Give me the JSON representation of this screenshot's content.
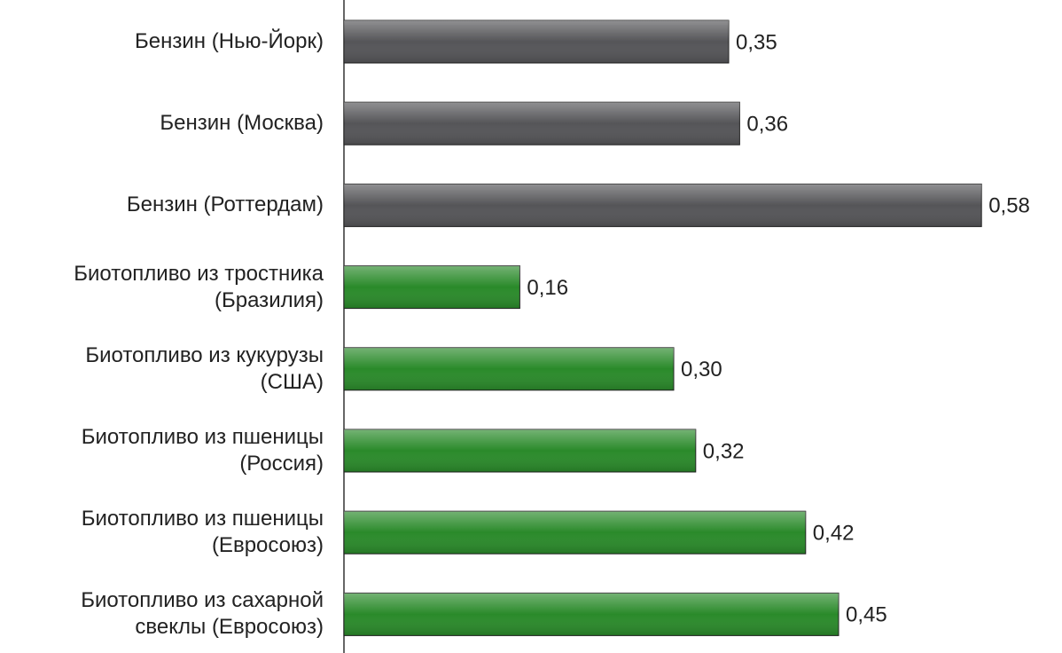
{
  "chart_data": {
    "type": "barh",
    "categories": [
      "Бензин (Нью-Йорк)",
      "Бензин (Москва)",
      "Бензин (Роттердам)",
      "Биотопливо из тростника\n(Бразилия)",
      "Биотопливо из кукурузы\n(США)",
      "Биотопливо из пшеницы\n(Россия)",
      "Биотопливо из пшеницы\n(Евросоюз)",
      "Биотопливо из сахарной\nсвеклы (Евросоюз)"
    ],
    "values": [
      0.35,
      0.36,
      0.58,
      0.16,
      0.3,
      0.32,
      0.42,
      0.45
    ],
    "value_labels": [
      "0,35",
      "0,36",
      "0,58",
      "0,16",
      "0,30",
      "0,32",
      "0,42",
      "0,45"
    ],
    "colors": [
      "#555558",
      "#555558",
      "#555558",
      "#2a8a2a",
      "#2a8a2a",
      "#2a8a2a",
      "#2a8a2a",
      "#2a8a2a"
    ],
    "xlim": [
      0,
      0.65
    ]
  }
}
